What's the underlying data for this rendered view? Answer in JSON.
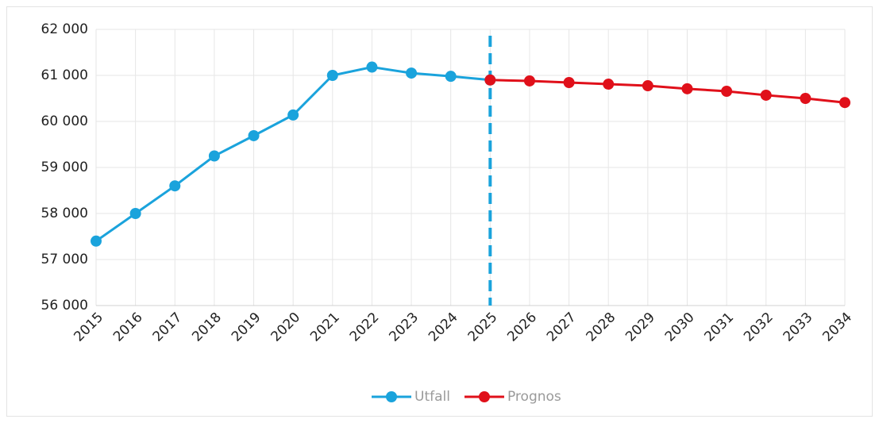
{
  "chart_data": {
    "type": "line",
    "categories": [
      "2015",
      "2016",
      "2017",
      "2018",
      "2019",
      "2020",
      "2021",
      "2022",
      "2023",
      "2024",
      "2025",
      "2026",
      "2027",
      "2028",
      "2029",
      "2030",
      "2031",
      "2032",
      "2033",
      "2034"
    ],
    "series": [
      {
        "name": "Utfall",
        "color": "#1aa3dc",
        "values": [
          57400,
          58000,
          58600,
          59250,
          59690,
          60140,
          61000,
          61180,
          61050,
          60980,
          60900,
          null,
          null,
          null,
          null,
          null,
          null,
          null,
          null,
          null
        ]
      },
      {
        "name": "Prognos",
        "color": "#e0101a",
        "values": [
          null,
          null,
          null,
          null,
          null,
          null,
          null,
          null,
          null,
          null,
          60900,
          60880,
          60845,
          60810,
          60775,
          60710,
          60655,
          60570,
          60500,
          60410
        ]
      }
    ],
    "ylim": [
      56000,
      62000
    ],
    "yticks": [
      {
        "value": 56000,
        "label": "56 000"
      },
      {
        "value": 57000,
        "label": "57 000"
      },
      {
        "value": 58000,
        "label": "58 000"
      },
      {
        "value": 59000,
        "label": "59 000"
      },
      {
        "value": 60000,
        "label": "60 000"
      },
      {
        "value": 61000,
        "label": "61 000"
      },
      {
        "value": 62000,
        "label": "62 000"
      }
    ],
    "grid": true,
    "legend": "bottom"
  }
}
